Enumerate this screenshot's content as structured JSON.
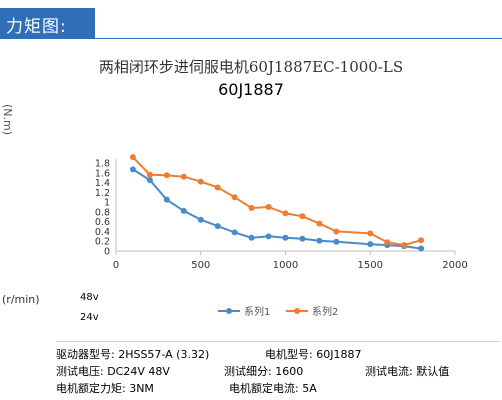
{
  "header": {
    "title": "力矩图:"
  },
  "chart_data": {
    "type": "line",
    "title": "两相闭环步进伺服电机60J1887EC-1000-LS",
    "subtitle": "60J1887",
    "ylabel": "(N.m)",
    "xlabel": "(r/min)",
    "xlim": [
      0,
      2000
    ],
    "ylim": [
      0,
      1.8
    ],
    "x_ticks": [
      "0",
      "500",
      "1000",
      "1500",
      "2000"
    ],
    "y_ticks": [
      "0",
      "0.2",
      "0.4",
      "0.6",
      "0.8",
      "1",
      "1.2",
      "1.4",
      "1.6",
      "1.8"
    ],
    "grid": false,
    "legend_position": "bottom",
    "voltage_labels": [
      "48v",
      "24v"
    ],
    "series": [
      {
        "name": "系列1",
        "color": "#4a8bc9",
        "x": [
          100,
          200,
          300,
          400,
          500,
          600,
          700,
          800,
          900,
          1000,
          1100,
          1200,
          1300,
          1500,
          1600,
          1700,
          1800
        ],
        "y": [
          1.67,
          1.45,
          1.05,
          0.82,
          0.64,
          0.51,
          0.38,
          0.27,
          0.3,
          0.27,
          0.25,
          0.21,
          0.19,
          0.14,
          0.12,
          0.1,
          0.05
        ]
      },
      {
        "name": "系列2",
        "color": "#ef7d31",
        "x": [
          100,
          200,
          300,
          400,
          500,
          600,
          700,
          800,
          900,
          1000,
          1100,
          1200,
          1300,
          1500,
          1600,
          1700,
          1800
        ],
        "y": [
          1.92,
          1.56,
          1.55,
          1.52,
          1.42,
          1.3,
          1.1,
          0.88,
          0.9,
          0.77,
          0.71,
          0.56,
          0.4,
          0.36,
          0.18,
          0.12,
          0.22
        ]
      }
    ]
  },
  "info": {
    "driver_model": "驱动器型号: 2HSS57-A (3.32)",
    "motor_model": "电机型号: 60J1887",
    "test_voltage": "测试电压: DC24V 48V",
    "test_microstep": "测试细分: 1600",
    "test_current": "测试电流: 默认值",
    "rated_torque": "电机额定力矩: 3NM",
    "rated_current": "电机额定电流: 5A"
  }
}
